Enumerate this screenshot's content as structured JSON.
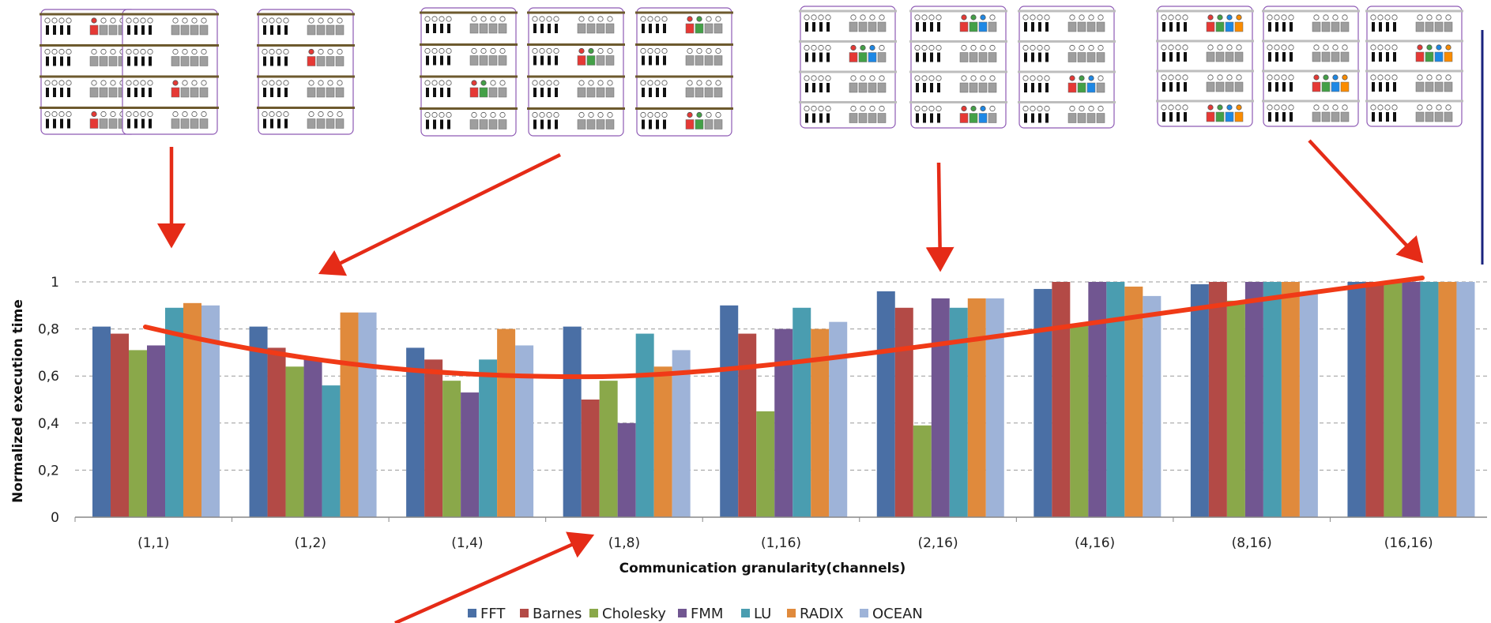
{
  "chart_data": {
    "type": "bar",
    "title": "",
    "xlabel": "Communication granularity(channels)",
    "ylabel": "Normalized execution time",
    "ylim": [
      0,
      1
    ],
    "yticks": [
      "0",
      "0,2",
      "0,4",
      "0,6",
      "0,8",
      "1"
    ],
    "grid": "horizontal dashed",
    "legend_position": "bottom",
    "categories": [
      "(1,1)",
      "(1,2)",
      "(1,4)",
      "(1,8)",
      "(1,16)",
      "(2,16)",
      "(4,16)",
      "(8,16)",
      "(16,16)"
    ],
    "series": [
      {
        "name": "FFT",
        "color": "#4a6fa5",
        "values": [
          0.81,
          0.81,
          0.72,
          0.81,
          0.9,
          0.96,
          0.97,
          0.99,
          1.0
        ]
      },
      {
        "name": "Barnes",
        "color": "#b34a46",
        "values": [
          0.78,
          0.72,
          0.67,
          0.5,
          0.78,
          0.89,
          1.0,
          1.0,
          1.0
        ]
      },
      {
        "name": "Cholesky",
        "color": "#8aa84a",
        "values": [
          0.71,
          0.64,
          0.58,
          0.58,
          0.45,
          0.39,
          0.82,
          0.92,
          1.0
        ]
      },
      {
        "name": "FMM",
        "color": "#715691",
        "values": [
          0.73,
          0.67,
          0.53,
          0.4,
          0.8,
          0.93,
          1.0,
          1.0,
          1.0
        ]
      },
      {
        "name": "LU",
        "color": "#4a9db0",
        "values": [
          0.89,
          0.56,
          0.67,
          0.78,
          0.89,
          0.89,
          1.0,
          1.0,
          1.0
        ]
      },
      {
        "name": "RADIX",
        "color": "#e08a3c",
        "values": [
          0.91,
          0.87,
          0.8,
          0.64,
          0.8,
          0.93,
          0.98,
          1.0,
          1.0
        ]
      },
      {
        "name": "OCEAN",
        "color": "#9eb3d8",
        "values": [
          0.9,
          0.87,
          0.73,
          0.71,
          0.83,
          0.93,
          0.94,
          0.95,
          1.0
        ]
      }
    ],
    "trend_curve_color": "#f03a17",
    "arrow_color": "#e52b17"
  }
}
